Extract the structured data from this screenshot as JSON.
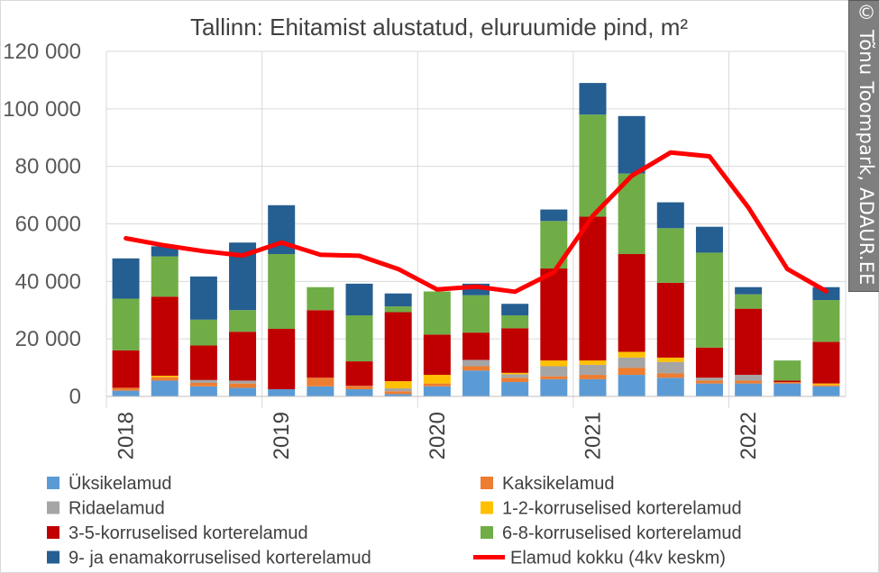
{
  "credit": {
    "symbol": "©",
    "text": "Tõnu Toompark, ADAUR.EE"
  },
  "chart_data": {
    "type": "bar",
    "stacked": true,
    "title": "Tallinn: Ehitamist alustatud, eluruumide pind, m²",
    "xlabel": "",
    "ylabel": "",
    "ylim": [
      0,
      120000
    ],
    "y_ticks": [
      0,
      20000,
      40000,
      60000,
      80000,
      100000,
      120000
    ],
    "y_tick_labels": [
      "0",
      "20 000",
      "40 000",
      "60 000",
      "80 000",
      "100 000",
      "120 000"
    ],
    "year_labels": [
      "2018",
      "2019",
      "2020",
      "2021",
      "2022"
    ],
    "categories": [
      "2018 Q1",
      "2018 Q2",
      "2018 Q3",
      "2018 Q4",
      "2019 Q1",
      "2019 Q2",
      "2019 Q3",
      "2019 Q4",
      "2020 Q1",
      "2020 Q2",
      "2020 Q3",
      "2020 Q4",
      "2021 Q1",
      "2021 Q2",
      "2021 Q3",
      "2021 Q4",
      "2022 Q1",
      "2022 Q2",
      "2022 Q3"
    ],
    "grid": true,
    "legend_position": "bottom",
    "series": [
      {
        "name": "Üksikelamud",
        "color": "#5b9bd5",
        "values": [
          2000,
          5500,
          3500,
          3000,
          2500,
          3500,
          2500,
          800,
          3500,
          9000,
          5000,
          6000,
          6000,
          7500,
          6500,
          4500,
          4500,
          4500,
          3500
        ]
      },
      {
        "name": "Kaksikelamud",
        "color": "#ed7d31",
        "values": [
          1000,
          1200,
          1200,
          1500,
          0,
          3000,
          1200,
          1000,
          1000,
          1500,
          1500,
          1000,
          1500,
          2500,
          1500,
          1000,
          1000,
          500,
          500
        ]
      },
      {
        "name": "Ridaelamud",
        "color": "#a5a5a5",
        "values": [
          0,
          0,
          1000,
          1000,
          0,
          0,
          0,
          1000,
          0,
          2200,
          1200,
          3500,
          3500,
          3500,
          4000,
          1000,
          2000,
          0,
          0
        ]
      },
      {
        "name": "1-2-korruselised korterelamud",
        "color": "#ffc000",
        "values": [
          0,
          500,
          0,
          0,
          0,
          0,
          0,
          2500,
          3000,
          0,
          500,
          2000,
          1500,
          2000,
          1500,
          0,
          0,
          0,
          500
        ]
      },
      {
        "name": "3-5-korruselised korterelamud",
        "color": "#c00000",
        "values": [
          13000,
          27500,
          12000,
          17000,
          21000,
          23500,
          8500,
          24000,
          14000,
          9500,
          15500,
          32000,
          50000,
          34000,
          26000,
          10500,
          23000,
          500,
          14500
        ]
      },
      {
        "name": "6-8-korruselised korterelamud",
        "color": "#70ad47",
        "values": [
          18000,
          14000,
          9000,
          7500,
          26000,
          8000,
          16000,
          2000,
          15000,
          13000,
          4500,
          16500,
          35500,
          28000,
          19000,
          33000,
          5000,
          7000,
          14500
        ]
      },
      {
        "name": "9- ja enamakorruselised korterelamud",
        "color": "#255e91",
        "values": [
          14000,
          3500,
          15000,
          23500,
          17000,
          0,
          11000,
          4500,
          0,
          4000,
          4000,
          4000,
          11000,
          20000,
          9000,
          9000,
          2500,
          0,
          4500
        ]
      }
    ],
    "line_series": {
      "name": "Elamud kokku (4kv keskm)",
      "color": "#ff0000",
      "values": [
        55000,
        52500,
        50500,
        49000,
        53500,
        49300,
        48900,
        44300,
        37200,
        38200,
        36400,
        43200,
        62800,
        76700,
        84800,
        83500,
        65700,
        44300,
        36600
      ]
    }
  }
}
